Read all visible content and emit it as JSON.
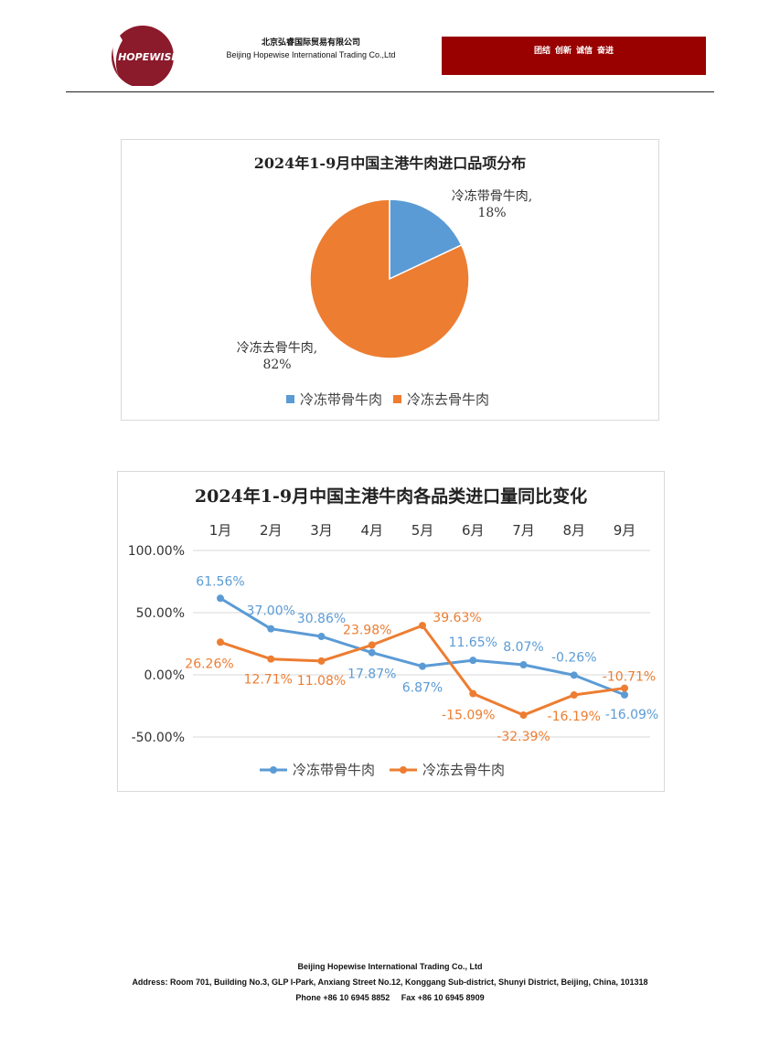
{
  "header": {
    "logo_text": "HOPEWISE",
    "company_cn": "北京弘睿国际贸易有限公司",
    "company_en": "Beijing Hopewise International Trading Co.,Ltd",
    "slogan": "团结  创新  诚信  奋进",
    "brand_color": "#990000"
  },
  "chart_data": [
    {
      "type": "pie",
      "title": "2024年1-9月中国主港牛肉进口品项分布",
      "slices": [
        {
          "name": "冷冻带骨牛肉",
          "value": 18,
          "label": "冷冻带骨牛肉,",
          "pct_label": "18%",
          "color": "#5B9BD5"
        },
        {
          "name": "冷冻去骨牛肉",
          "value": 82,
          "label": "冷冻去骨牛肉,",
          "pct_label": "82%",
          "color": "#ED7D31"
        }
      ],
      "legend": [
        "冷冻带骨牛肉",
        "冷冻去骨牛肉"
      ],
      "legend_position": "bottom"
    },
    {
      "type": "line",
      "title": "2024年1-9月中国主港牛肉各品类进口量同比变化",
      "categories": [
        "1月",
        "2月",
        "3月",
        "4月",
        "5月",
        "6月",
        "7月",
        "8月",
        "9月"
      ],
      "ylim": [
        -50,
        100
      ],
      "yticks": [
        "100.00%",
        "50.00%",
        "0.00%",
        "-50.00%"
      ],
      "ytick_values": [
        100,
        50,
        0,
        -50
      ],
      "grid": true,
      "legend_position": "bottom",
      "series": [
        {
          "name": "冷冻带骨牛肉",
          "color": "#5B9BD5",
          "values": [
            61.56,
            37.0,
            30.86,
            17.87,
            6.87,
            11.65,
            8.07,
            -0.26,
            -16.09
          ],
          "labels": [
            "61.56%",
            "37.00%",
            "30.86%",
            "17.87%",
            "6.87%",
            "11.65%",
            "8.07%",
            "-0.26%",
            "-16.09%"
          ]
        },
        {
          "name": "冷冻去骨牛肉",
          "color": "#ED7D31",
          "values": [
            26.26,
            12.71,
            11.08,
            23.98,
            39.63,
            -15.09,
            -32.39,
            -16.19,
            -10.71
          ],
          "labels": [
            "26.26%",
            "12.71%",
            "11.08%",
            "23.98%",
            "39.63%",
            "-15.09%",
            "-32.39%",
            "-16.19%",
            "-10.71%"
          ]
        }
      ]
    }
  ],
  "footer": {
    "company": "Beijing Hopewise International Trading Co., Ltd",
    "address": "Address: Room 701, Building No.3, GLP I-Park, Anxiang Street No.12, Konggang Sub-district, Shunyi District, Beijing, China, 101318",
    "contact": "Phone +86 10 6945 8852     Fax +86 10 6945 8909"
  }
}
